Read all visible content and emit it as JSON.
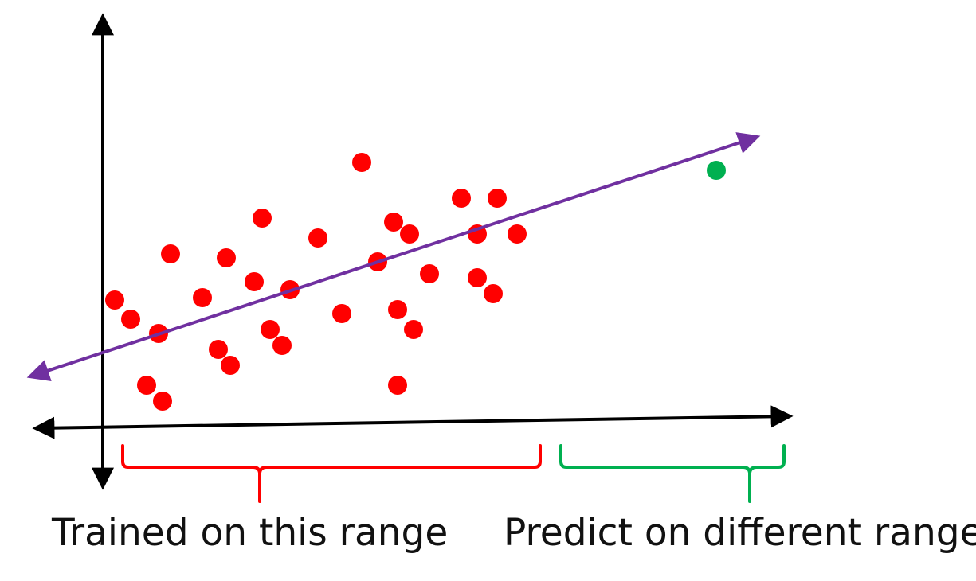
{
  "labels": {
    "trained_range": "Trained on this range",
    "predict_range": "Predict on different range"
  },
  "colors": {
    "training_points": "#ff0000",
    "prediction_point": "#00b050",
    "fit_line": "#7030a0",
    "axes": "#000000",
    "train_bracket": "#ff0000",
    "predict_bracket": "#00b050"
  },
  "chart_data": {
    "type": "scatter",
    "title": "",
    "xlabel": "",
    "ylabel": "",
    "series": [
      {
        "role": "training",
        "points": [
          [
            1.5,
            15.2
          ],
          [
            3.5,
            12.8
          ],
          [
            7.0,
            11.0
          ],
          [
            8.5,
            21.0
          ],
          [
            5.5,
            4.5
          ],
          [
            7.5,
            2.5
          ],
          [
            12.5,
            15.5
          ],
          [
            14.5,
            9.0
          ],
          [
            16.0,
            7.0
          ],
          [
            15.5,
            20.5
          ],
          [
            19.0,
            17.5
          ],
          [
            20.0,
            25.5
          ],
          [
            21.0,
            11.5
          ],
          [
            22.5,
            9.5
          ],
          [
            23.5,
            16.5
          ],
          [
            27.0,
            23.0
          ],
          [
            30.0,
            13.5
          ],
          [
            32.5,
            32.5
          ],
          [
            34.5,
            20.0
          ],
          [
            36.5,
            25.0
          ],
          [
            37.0,
            14.0
          ],
          [
            37.0,
            4.5
          ],
          [
            38.5,
            23.5
          ],
          [
            39.0,
            11.5
          ],
          [
            41.0,
            18.5
          ],
          [
            45.0,
            28.0
          ],
          [
            47.0,
            23.5
          ],
          [
            47.0,
            18.0
          ],
          [
            49.0,
            16.0
          ],
          [
            49.5,
            28.0
          ],
          [
            52.0,
            23.5
          ]
        ]
      },
      {
        "role": "prediction",
        "points": [
          [
            77.0,
            31.5
          ]
        ]
      }
    ],
    "fit_line": {
      "slope": 0.33,
      "intercept": 8.6
    },
    "training_range": [
      2,
      55
    ],
    "prediction_range": [
      57,
      86
    ],
    "xlim": [
      -9,
      86
    ],
    "ylim": [
      -1,
      51
    ],
    "grid": false,
    "legend": "none"
  }
}
